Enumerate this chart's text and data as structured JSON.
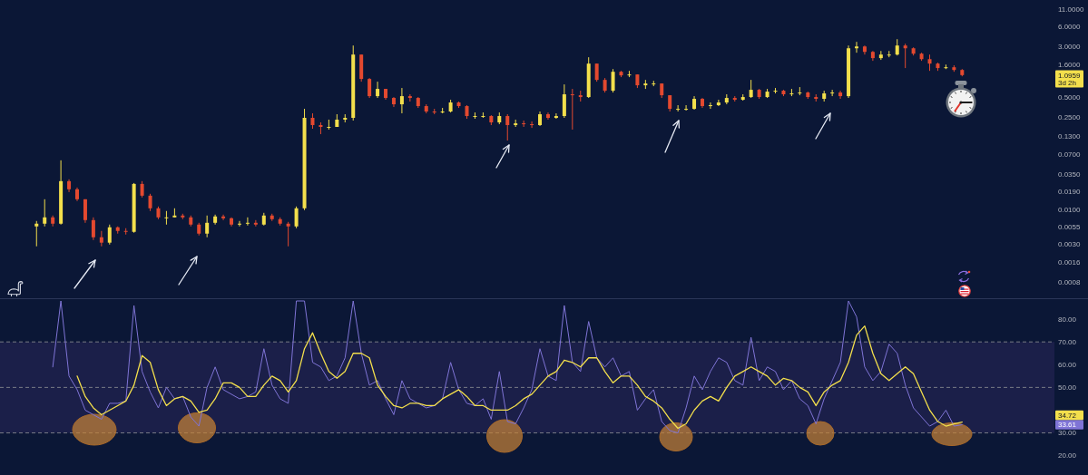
{
  "chart_data": [
    {
      "type": "candlestick",
      "categories": [
        null,
        null,
        null,
        null,
        null,
        null,
        null,
        null,
        null,
        null,
        null,
        null,
        null,
        null,
        null,
        null,
        null,
        null,
        null,
        null,
        null,
        null,
        null,
        null,
        null,
        null,
        null,
        null,
        null,
        null,
        null,
        null,
        null,
        null,
        null,
        null,
        null,
        null,
        null,
        null,
        null,
        null,
        null,
        null,
        null,
        null,
        null,
        null,
        null,
        null,
        null,
        null,
        null,
        null,
        null,
        null,
        null,
        null,
        null,
        null,
        null,
        null,
        null,
        null,
        null,
        null,
        null,
        null,
        null,
        null,
        null,
        null,
        null,
        null,
        null,
        null,
        null,
        null,
        null,
        null,
        null,
        null,
        null,
        null,
        null,
        null,
        null,
        null,
        null,
        null,
        null,
        null,
        null,
        null,
        null,
        null,
        null,
        null,
        null,
        null,
        null,
        null,
        null,
        null,
        null,
        null,
        null,
        null,
        null,
        null,
        null,
        null,
        null,
        null,
        null,
        null,
        null,
        null,
        null,
        null,
        null,
        null,
        null,
        null,
        null,
        null,
        null,
        null,
        null,
        null,
        null,
        null,
        null,
        null
      ],
      "ohlc": [
        null,
        null,
        null,
        null,
        [
          0.00562,
          0.00679,
          0.00281,
          0.00618
        ],
        [
          0.00618,
          0.01447,
          0.00562,
          0.0077
        ],
        [
          0.0077,
          0.00821,
          0.00562,
          0.00618
        ],
        [
          0.00618,
          0.0562,
          0.00599,
          0.0272
        ],
        [
          0.0272,
          0.029,
          0.0186,
          0.0205
        ],
        [
          0.0205,
          0.0218,
          0.01359,
          0.01447
        ],
        [
          0.01447,
          0.01447,
          0.00637,
          0.007
        ],
        [
          0.007,
          0.0077,
          0.0035,
          0.00385
        ],
        [
          0.00385,
          0.0048,
          0.00281,
          0.00319
        ],
        [
          0.00319,
          0.00599,
          0.00299,
          0.00545
        ],
        [
          0.00545,
          0.00562,
          0.00437,
          0.0048
        ],
        [
          0.0048,
          0.00528,
          0.00423,
          0.00465
        ],
        [
          0.00465,
          0.0255,
          0.00451,
          0.0247
        ],
        [
          0.0247,
          0.0272,
          0.0154,
          0.0164
        ],
        [
          0.0164,
          0.0175,
          0.00961,
          0.01056
        ],
        [
          0.01056,
          0.01125,
          0.00723,
          0.0077
        ],
        [
          0.0077,
          0.00961,
          0.00599,
          0.0077
        ],
        [
          0.0077,
          0.01056,
          0.0077,
          0.00821
        ],
        [
          0.00821,
          0.00874,
          0.00723,
          0.0077
        ],
        [
          0.0077,
          0.00821,
          0.00562,
          0.00599
        ],
        [
          0.00599,
          0.00637,
          0.0041,
          0.00437
        ],
        [
          0.00437,
          0.00821,
          0.00385,
          0.00637
        ],
        [
          0.00637,
          0.00847,
          0.00599,
          0.00795
        ],
        [
          0.00795,
          0.00847,
          0.007,
          0.00746
        ],
        [
          0.00746,
          0.0077,
          0.00562,
          0.00599
        ],
        [
          0.00599,
          0.00679,
          0.00562,
          0.00618
        ],
        [
          0.00618,
          0.0077,
          0.0058,
          0.00637
        ],
        [
          0.00637,
          0.007,
          0.00562,
          0.00599
        ],
        [
          0.00599,
          0.00902,
          0.0058,
          0.00821
        ],
        [
          0.00821,
          0.00874,
          0.00679,
          0.00723
        ],
        [
          0.00723,
          0.0077,
          0.0058,
          0.00618
        ],
        [
          0.00618,
          0.00658,
          0.00281,
          0.00562
        ],
        [
          0.00562,
          0.01125,
          0.00528,
          0.01056
        ],
        [
          0.01056,
          0.338,
          0.00992,
          0.247
        ],
        [
          0.247,
          0.289,
          0.169,
          0.192
        ],
        [
          0.192,
          0.211,
          0.14,
          0.18
        ],
        [
          0.18,
          0.232,
          0.164,
          0.18
        ],
        [
          0.18,
          0.28,
          0.18,
          0.232
        ],
        [
          0.232,
          0.28,
          0.211,
          0.247
        ],
        [
          0.247,
          3.07,
          0.225,
          2.24
        ],
        [
          2.24,
          2.24,
          0.871,
          0.957
        ],
        [
          0.957,
          0.988,
          0.494,
          0.526
        ],
        [
          0.526,
          0.871,
          0.494,
          0.677
        ],
        [
          0.677,
          0.677,
          0.464,
          0.494
        ],
        [
          0.494,
          0.51,
          0.36,
          0.396
        ],
        [
          0.396,
          0.699,
          0.289,
          0.526
        ],
        [
          0.526,
          0.561,
          0.436,
          0.494
        ],
        [
          0.494,
          0.51,
          0.349,
          0.372
        ],
        [
          0.372,
          0.396,
          0.289,
          0.308
        ],
        [
          0.308,
          0.338,
          0.28,
          0.298
        ],
        [
          0.298,
          0.349,
          0.289,
          0.308
        ],
        [
          0.308,
          0.464,
          0.298,
          0.422
        ],
        [
          0.422,
          0.436,
          0.349,
          0.372
        ],
        [
          0.372,
          0.384,
          0.239,
          0.263
        ],
        [
          0.263,
          0.298,
          0.239,
          0.263
        ],
        [
          0.263,
          0.298,
          0.247,
          0.263
        ],
        [
          0.263,
          0.271,
          0.192,
          0.211
        ],
        [
          0.211,
          0.298,
          0.198,
          0.263
        ],
        [
          0.263,
          0.28,
          0.112,
          0.192
        ],
        [
          0.192,
          0.232,
          0.18,
          0.204
        ],
        [
          0.204,
          0.225,
          0.18,
          0.198
        ],
        [
          0.198,
          0.218,
          0.174,
          0.192
        ],
        [
          0.192,
          0.308,
          0.186,
          0.28
        ],
        [
          0.28,
          0.298,
          0.232,
          0.247
        ],
        [
          0.247,
          0.289,
          0.239,
          0.263
        ],
        [
          0.263,
          0.792,
          0.247,
          0.561
        ],
        [
          0.561,
          0.677,
          0.164,
          0.543
        ],
        [
          0.543,
          0.636,
          0.436,
          0.51
        ],
        [
          0.51,
          2.04,
          0.494,
          1.635
        ],
        [
          1.635,
          1.635,
          0.871,
          0.927
        ],
        [
          0.927,
          0.988,
          0.597,
          0.636
        ],
        [
          0.636,
          1.35,
          0.597,
          1.23
        ],
        [
          1.23,
          1.27,
          1.02,
          1.085
        ],
        [
          1.085,
          1.27,
          1.02,
          1.12
        ],
        [
          1.12,
          1.12,
          0.699,
          0.768
        ],
        [
          0.768,
          0.927,
          0.677,
          0.818
        ],
        [
          0.818,
          0.898,
          0.744,
          0.818
        ],
        [
          0.818,
          0.818,
          0.494,
          0.543
        ],
        [
          0.543,
          0.543,
          0.308,
          0.338
        ],
        [
          0.338,
          0.384,
          0.308,
          0.338
        ],
        [
          0.338,
          0.384,
          0.318,
          0.338
        ],
        [
          0.338,
          0.526,
          0.328,
          0.479
        ],
        [
          0.479,
          0.494,
          0.349,
          0.372
        ],
        [
          0.372,
          0.422,
          0.338,
          0.384
        ],
        [
          0.384,
          0.464,
          0.372,
          0.422
        ],
        [
          0.422,
          0.561,
          0.396,
          0.494
        ],
        [
          0.494,
          0.526,
          0.436,
          0.464
        ],
        [
          0.464,
          0.561,
          0.45,
          0.51
        ],
        [
          0.51,
          0.927,
          0.494,
          0.656
        ],
        [
          0.656,
          0.677,
          0.479,
          0.51
        ],
        [
          0.51,
          0.677,
          0.494,
          0.616
        ],
        [
          0.616,
          0.699,
          0.579,
          0.636
        ],
        [
          0.636,
          0.656,
          0.526,
          0.561
        ],
        [
          0.561,
          0.677,
          0.526,
          0.579
        ],
        [
          0.579,
          0.721,
          0.543,
          0.597
        ],
        [
          0.597,
          0.616,
          0.479,
          0.51
        ],
        [
          0.51,
          0.561,
          0.436,
          0.479
        ],
        [
          0.479,
          0.636,
          0.436,
          0.579
        ],
        [
          0.579,
          0.656,
          0.526,
          0.597
        ],
        [
          0.597,
          0.636,
          0.479,
          0.526
        ],
        [
          0.526,
          3.07,
          0.494,
          2.79
        ],
        [
          2.79,
          3.49,
          2.39,
          2.97
        ],
        [
          2.97,
          3.07,
          2.24,
          2.46
        ],
        [
          2.46,
          2.54,
          1.8,
          1.98
        ],
        [
          1.98,
          2.54,
          1.86,
          2.24
        ],
        [
          2.24,
          2.54,
          2.04,
          2.24
        ],
        [
          2.24,
          3.83,
          2.17,
          3.07
        ],
        [
          3.07,
          3.27,
          1.4,
          2.79
        ],
        [
          2.79,
          2.88,
          2.17,
          2.31
        ],
        [
          2.31,
          2.39,
          1.8,
          1.91
        ],
        [
          1.91,
          2.24,
          1.27,
          1.635
        ],
        [
          1.635,
          1.69,
          1.27,
          1.4
        ],
        [
          1.4,
          1.58,
          1.35,
          1.44
        ],
        [
          1.44,
          1.54,
          1.23,
          1.31
        ],
        [
          1.31,
          1.35,
          1.05,
          1.0959
        ],
        null,
        null,
        null,
        null,
        null,
        null,
        null,
        null,
        null,
        null,
        null,
        null,
        null,
        null,
        null
      ],
      "colors": [
        null,
        null,
        null,
        null,
        "#f3df4c",
        "#f3df4c",
        "#e4492f",
        "#f3df4c",
        "#e4492f",
        "#e4492f",
        "#e4492f",
        "#e4492f",
        "#e4492f",
        "#f3df4c",
        "#e4492f",
        "#e4492f",
        "#f3df4c",
        "#e4492f",
        "#e4492f",
        "#e4492f",
        "#f3df4c",
        "#f3df4c",
        "#e4492f",
        "#e4492f",
        "#e4492f",
        "#f3df4c",
        "#f3df4c",
        "#e4492f",
        "#e4492f",
        "#f3df4c",
        "#f3df4c",
        "#e4492f",
        "#f3df4c",
        "#e4492f",
        "#e4492f",
        "#e4492f",
        "#f3df4c",
        "#f3df4c",
        "#e4492f",
        "#e4492f",
        "#f3df4c",
        "#f3df4c",
        "#f3df4c",
        "#f3df4c",
        "#e4492f",
        "#e4492f",
        "#f3df4c",
        "#e4492f",
        "#e4492f",
        "#f3df4c",
        "#e4492f",
        "#e4492f",
        "#e4492f",
        "#e4492f",
        "#f3df4c",
        "#f3df4c",
        "#e4492f",
        "#e4492f",
        "#f3df4c",
        "#f3df4c",
        "#e4492f",
        "#f3df4c",
        "#e4492f",
        "#f3df4c",
        "#e4492f",
        "#e4492f",
        "#f3df4c",
        "#e4492f",
        "#f3df4c",
        "#f3df4c",
        "#e4492f",
        "#e4492f",
        "#f3df4c",
        "#e4492f",
        "#e4492f",
        "#f3df4c",
        "#e4492f",
        "#f3df4c",
        "#e4492f",
        "#f3df4c",
        "#f3df4c",
        "#e4492f",
        "#e4492f",
        "#f3df4c",
        "#f3df4c",
        "#f3df4c",
        "#e4492f",
        "#f3df4c",
        "#f3df4c",
        "#f3df4c",
        "#e4492f",
        "#f3df4c",
        "#f3df4c",
        "#e4492f",
        "#f3df4c",
        "#f3df4c",
        "#e4492f",
        "#f3df4c",
        "#f3df4c",
        "#e4492f",
        "#e4492f",
        "#f3df4c",
        "#f3df4c",
        "#e4492f",
        "#f3df4c",
        "#f3df4c",
        "#e4492f",
        "#e4492f",
        "#f3df4c",
        "#f3df4c",
        "#f3df4c",
        "#e4492f",
        "#e4492f",
        "#e4492f",
        "#e4492f",
        "#e4492f",
        "#f3df4c",
        "#e4492f",
        "#e4492f",
        null,
        null,
        null,
        null,
        null,
        null,
        null,
        null,
        null,
        null,
        null,
        null,
        null,
        null,
        null
      ],
      "log": true,
      "ylim": [
        0.00046,
        15
      ],
      "yticks": [
        {
          "value": 11,
          "label": "11.0000"
        },
        {
          "value": 6,
          "label": "6.0000"
        },
        {
          "value": 3,
          "label": "3.0000"
        },
        {
          "value": 1.6,
          "label": "1.6000"
        },
        {
          "value": 0.5,
          "label": "0.5000"
        },
        {
          "value": 0.25,
          "label": "0.2500"
        },
        {
          "value": 0.13,
          "label": "0.1300"
        },
        {
          "value": 0.07,
          "label": "0.0700"
        },
        {
          "value": 0.035,
          "label": "0.0350"
        },
        {
          "value": 0.019,
          "label": "0.0190"
        },
        {
          "value": 0.01,
          "label": "0.0100"
        },
        {
          "value": 0.0055,
          "label": "0.0055"
        },
        {
          "value": 0.003,
          "label": "0.0030"
        },
        {
          "value": 0.0016,
          "label": "0.0016"
        },
        {
          "value": 0.0008,
          "label": "0.0008"
        }
      ],
      "tick_labels": "y",
      "annotations": [
        "1.0959",
        "3d 2h"
      ]
    },
    {
      "type": "line",
      "categories": [
        null,
        null,
        null,
        null,
        null,
        null,
        null,
        null,
        null,
        null,
        null,
        null,
        null,
        null,
        null,
        null,
        null,
        null,
        null,
        null,
        null,
        null,
        null,
        null,
        null,
        null,
        null,
        null,
        null,
        null,
        null,
        null,
        null,
        null,
        null,
        null,
        null,
        null,
        null,
        null,
        null,
        null,
        null,
        null,
        null,
        null,
        null,
        null,
        null,
        null,
        null,
        null,
        null,
        null,
        null,
        null,
        null,
        null,
        null,
        null,
        null,
        null,
        null,
        null,
        null,
        null,
        null,
        null,
        null,
        null,
        null,
        null,
        null,
        null,
        null,
        null,
        null,
        null,
        null,
        null,
        null,
        null,
        null,
        null,
        null,
        null,
        null,
        null,
        null,
        null,
        null,
        null,
        null,
        null,
        null,
        null,
        null,
        null,
        null,
        null,
        null,
        null,
        null,
        null,
        null,
        null,
        null,
        null,
        null,
        null,
        null,
        null,
        null,
        null,
        null,
        null,
        null,
        null,
        null,
        null,
        null,
        null,
        null,
        null,
        null,
        null,
        null,
        null,
        null,
        null,
        null,
        null,
        null,
        null
      ],
      "series": [
        {
          "color": "#7f74d6",
          "values": [
            null,
            null,
            null,
            null,
            null,
            null,
            59,
            88,
            55,
            49,
            40,
            38,
            36,
            43,
            43,
            44,
            86,
            57,
            48,
            41,
            50,
            45,
            46,
            37,
            33,
            50,
            59,
            49,
            47,
            45,
            46,
            48,
            67,
            51,
            45,
            43,
            88,
            88,
            61,
            59,
            53,
            55,
            63,
            88,
            65,
            51,
            53,
            45,
            38,
            53,
            45,
            43,
            41,
            42,
            45,
            61,
            49,
            43,
            42,
            45,
            36,
            57,
            35,
            34,
            41,
            49,
            67,
            55,
            53,
            86,
            61,
            57,
            79,
            63,
            59,
            63,
            55,
            57,
            40,
            45,
            49,
            35,
            31,
            30,
            41,
            55,
            49,
            57,
            63,
            61,
            53,
            51,
            72,
            53,
            59,
            57,
            49,
            53,
            45,
            42,
            34,
            45,
            53,
            61,
            88,
            81,
            59,
            53,
            57,
            69,
            65,
            51,
            41,
            37,
            33,
            35,
            40,
            33,
            33.61,
            null,
            null,
            null,
            null,
            null,
            null,
            null,
            null,
            null,
            null,
            null,
            null,
            null,
            null,
            null
          ]
        },
        {
          "color": "#f3df4c",
          "values": [
            null,
            null,
            null,
            null,
            null,
            null,
            null,
            null,
            null,
            55,
            46,
            41,
            38,
            40,
            42,
            44,
            51,
            64,
            61,
            49,
            42,
            45,
            46,
            44,
            39,
            40,
            45,
            52,
            52,
            50,
            46,
            46,
            51,
            55,
            53,
            48,
            53,
            67,
            74,
            65,
            57,
            54,
            57,
            65,
            65,
            63,
            51,
            46,
            42,
            41,
            43,
            43,
            42,
            42,
            45,
            47,
            49,
            46,
            42,
            42,
            40,
            40,
            40,
            42,
            45,
            47,
            51,
            55,
            57,
            62,
            61,
            59,
            63,
            63,
            57,
            52,
            55,
            55,
            51,
            46,
            44,
            41,
            36,
            32,
            34,
            40,
            44,
            46,
            44,
            50,
            55,
            57,
            59,
            57,
            55,
            51,
            54,
            53,
            50,
            48,
            42,
            48,
            51,
            53,
            61,
            73,
            77,
            65,
            56,
            53,
            56,
            59,
            56,
            48,
            40,
            35,
            33,
            34,
            34.72,
            null,
            null,
            null,
            null,
            null,
            null,
            null,
            null,
            null,
            null,
            null,
            null,
            null,
            null,
            null
          ]
        }
      ],
      "ylim": [
        11.5,
        88.8
      ],
      "yticks": [
        {
          "value": 20,
          "label": "20.00"
        },
        {
          "value": 30,
          "label": "30.00"
        },
        {
          "value": 50,
          "label": "50.00"
        },
        {
          "value": 60,
          "label": "60.00"
        },
        {
          "value": 70,
          "label": "70.00"
        },
        {
          "value": 80,
          "label": "80.00"
        }
      ],
      "tick_labels": "y",
      "ref_lines": [
        {
          "axis": "y",
          "value": 70,
          "line_style": "dashed",
          "color": "#787b86"
        },
        {
          "axis": "y",
          "value": 50,
          "line_style": "dashed",
          "color": "#787b86"
        },
        {
          "axis": "y",
          "value": 30,
          "line_style": "dashed",
          "color": "#787b86"
        }
      ],
      "bands": [
        {
          "axis": "y",
          "from": 30,
          "to": 70,
          "color": "#7e57c2"
        }
      ],
      "annotations": [
        "33.61",
        "34.72"
      ]
    }
  ]
}
